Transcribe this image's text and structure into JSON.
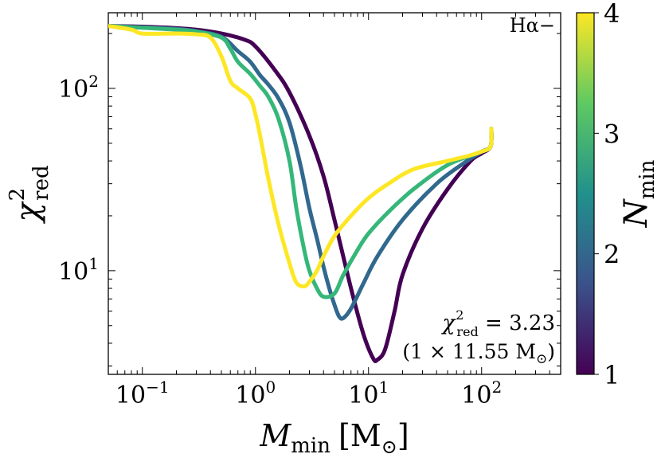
{
  "chart_data": {
    "type": "line",
    "title": "",
    "annotation_top_right": "Hα−",
    "annotation_chi_prefix": "χ",
    "annotation_chi_sup": "2",
    "annotation_chi_sub": "red",
    "annotation_chi_value": " = 3.23",
    "annotation_best": "(1 × 11.55 M",
    "annotation_best_sun": "⊙",
    "annotation_best_close": ")",
    "xlabel_main": "M",
    "xlabel_sub": "min",
    "xlabel_unit_open": "[M",
    "xlabel_unit_sun": "⊙",
    "xlabel_unit_close": "]",
    "ylabel_main": "χ",
    "ylabel_sup": "2",
    "ylabel_sub": "red",
    "xscale": "log",
    "yscale": "log",
    "xlim": [
      0.05,
      500
    ],
    "ylim": [
      2.7,
      260
    ],
    "x_tick_labels": [
      {
        "base": "10",
        "exp": "−1",
        "value": 0.1
      },
      {
        "base": "10",
        "exp": "0",
        "value": 1
      },
      {
        "base": "10",
        "exp": "1",
        "value": 10
      },
      {
        "base": "10",
        "exp": "2",
        "value": 100
      }
    ],
    "y_tick_labels": [
      {
        "base": "10",
        "exp": "1",
        "value": 10
      },
      {
        "base": "10",
        "exp": "2",
        "value": 100
      }
    ],
    "colorbar": {
      "label_main": "N",
      "label_sub": "min",
      "range": [
        1,
        4
      ],
      "ticks": [
        "1",
        "2",
        "3",
        "4"
      ],
      "colormap": "viridis",
      "colors": [
        "#440154",
        "#3b528b",
        "#21918c",
        "#5ec962",
        "#fde725"
      ]
    },
    "series": [
      {
        "name": "N_min = 1",
        "color": "#440154",
        "x": [
          0.05,
          0.1,
          0.2,
          0.3,
          0.5,
          0.8,
          1,
          1.5,
          2,
          3,
          4,
          5,
          7,
          9,
          11,
          12,
          14,
          17,
          20,
          30,
          50,
          80,
          100,
          120,
          122
        ],
        "y": [
          220,
          218,
          214,
          210,
          200,
          185,
          170,
          125,
          95,
          55,
          33,
          19,
          8,
          4.5,
          3.3,
          3.25,
          3.7,
          6,
          9.5,
          17,
          28,
          40,
          44,
          48,
          60
        ]
      },
      {
        "name": "N_min = 2",
        "color": "#31688e",
        "x": [
          0.05,
          0.1,
          0.2,
          0.3,
          0.5,
          0.7,
          0.9,
          1.1,
          1.3,
          1.6,
          2,
          2.5,
          3,
          3.5,
          4,
          4.5,
          5,
          5.5,
          6,
          7,
          9,
          12,
          20,
          40,
          70,
          100,
          120,
          122
        ],
        "y": [
          220,
          216,
          212,
          206,
          192,
          160,
          140,
          118,
          105,
          88,
          65,
          38,
          22,
          15,
          10.5,
          8,
          6.5,
          5.6,
          5.5,
          6.2,
          8.5,
          12,
          19,
          30,
          39,
          45,
          48,
          60
        ]
      },
      {
        "name": "N_min = 3",
        "color": "#35b779",
        "x": [
          0.05,
          0.1,
          0.2,
          0.3,
          0.5,
          0.6,
          0.7,
          0.9,
          1.1,
          1.3,
          1.6,
          2,
          2.3,
          2.7,
          3,
          3.5,
          4,
          5,
          6,
          8,
          10,
          15,
          25,
          50,
          100,
          120,
          122
        ],
        "y": [
          220,
          215,
          210,
          205,
          190,
          165,
          140,
          120,
          103,
          90,
          68,
          40,
          22,
          13,
          10,
          8,
          7.2,
          7.5,
          9.5,
          13,
          16,
          21,
          28,
          38,
          45,
          48,
          60
        ]
      },
      {
        "name": "N_min = 4",
        "color": "#fde725",
        "x": [
          0.05,
          0.08,
          0.1,
          0.2,
          0.3,
          0.4,
          0.5,
          0.6,
          0.7,
          0.9,
          1.0,
          1.1,
          1.3,
          1.6,
          2.0,
          2.3,
          2.7,
          3.0,
          3.5,
          4,
          5,
          7,
          10,
          15,
          25,
          50,
          80,
          100,
          120,
          122
        ],
        "y": [
          220,
          210,
          200,
          200,
          198,
          190,
          150,
          110,
          100,
          88,
          72,
          55,
          32,
          18,
          11,
          8.6,
          8.2,
          8.7,
          10,
          12,
          15.5,
          20,
          25,
          30,
          36,
          40,
          43,
          45,
          48,
          60
        ]
      }
    ]
  }
}
